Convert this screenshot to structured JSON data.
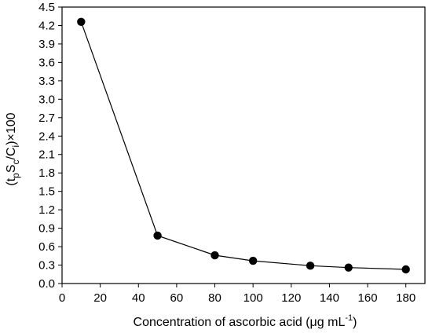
{
  "chart_data": {
    "type": "line",
    "title": "",
    "xlabel": {
      "main": "Concentration of ascorbic acid (μg mL",
      "superscript": "-1",
      "closing": ")"
    },
    "ylabel": {
      "open": "(t",
      "sub_p": "p",
      "S": "S",
      "sub_c": "c",
      "slash": "/C",
      "sub_i": "i",
      "close": ")×100"
    },
    "xlim": [
      0,
      190
    ],
    "ylim": [
      0.0,
      4.5
    ],
    "xticks": [
      0,
      20,
      40,
      60,
      80,
      100,
      120,
      140,
      160,
      180
    ],
    "yticks": [
      "0.0",
      "0.3",
      "0.6",
      "0.9",
      "1.2",
      "1.5",
      "1.8",
      "2.1",
      "2.4",
      "2.7",
      "3.0",
      "3.3",
      "3.6",
      "3.9",
      "4.2",
      "4.5"
    ],
    "grid": false,
    "series": [
      {
        "x": [
          10,
          50,
          80,
          100,
          130,
          150,
          180
        ],
        "values": [
          4.26,
          0.78,
          0.46,
          0.37,
          0.29,
          0.26,
          0.23
        ],
        "color": "#000000",
        "marker": "filled-circle"
      }
    ]
  }
}
